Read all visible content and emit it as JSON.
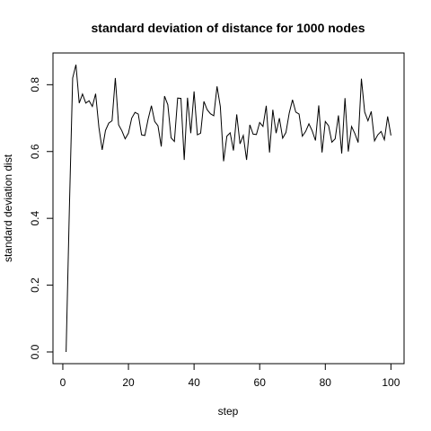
{
  "chart_data": {
    "type": "line",
    "title": "standard deviation of distance for 1000 nodes",
    "xlabel": "step",
    "ylabel": "standard deviation dist",
    "xlim": [
      -3,
      104
    ],
    "ylim": [
      -0.035,
      0.895
    ],
    "x_ticks": [
      0,
      20,
      40,
      60,
      80,
      100
    ],
    "y_ticks": [
      0.0,
      0.2,
      0.4,
      0.6,
      0.8
    ],
    "grid": false,
    "legend": "none",
    "x": [
      1,
      2,
      3,
      4,
      5,
      6,
      7,
      8,
      9,
      10,
      11,
      12,
      13,
      14,
      15,
      16,
      17,
      18,
      19,
      20,
      21,
      22,
      23,
      24,
      25,
      26,
      27,
      28,
      29,
      30,
      31,
      32,
      33,
      34,
      35,
      36,
      37,
      38,
      39,
      40,
      41,
      42,
      43,
      44,
      45,
      46,
      47,
      48,
      49,
      50,
      51,
      52,
      53,
      54,
      55,
      56,
      57,
      58,
      59,
      60,
      61,
      62,
      63,
      64,
      65,
      66,
      67,
      68,
      69,
      70,
      71,
      72,
      73,
      74,
      75,
      76,
      77,
      78,
      79,
      80,
      81,
      82,
      83,
      84,
      85,
      86,
      87,
      88,
      89,
      90,
      91,
      92,
      93,
      94,
      95,
      96,
      97,
      98,
      99,
      100
    ],
    "values": [
      0.0,
      0.43,
      0.82,
      0.86,
      0.745,
      0.772,
      0.745,
      0.752,
      0.735,
      0.773,
      0.672,
      0.605,
      0.663,
      0.685,
      0.692,
      0.82,
      0.68,
      0.662,
      0.638,
      0.655,
      0.7,
      0.717,
      0.712,
      0.65,
      0.648,
      0.697,
      0.737,
      0.69,
      0.677,
      0.615,
      0.766,
      0.74,
      0.641,
      0.63,
      0.76,
      0.759,
      0.575,
      0.761,
      0.655,
      0.78,
      0.65,
      0.655,
      0.75,
      0.725,
      0.713,
      0.707,
      0.795,
      0.735,
      0.571,
      0.646,
      0.656,
      0.603,
      0.711,
      0.623,
      0.648,
      0.575,
      0.68,
      0.652,
      0.651,
      0.687,
      0.675,
      0.737,
      0.597,
      0.725,
      0.655,
      0.7,
      0.64,
      0.657,
      0.715,
      0.755,
      0.718,
      0.712,
      0.646,
      0.66,
      0.683,
      0.662,
      0.633,
      0.738,
      0.597,
      0.69,
      0.677,
      0.628,
      0.638,
      0.708,
      0.594,
      0.76,
      0.6,
      0.675,
      0.654,
      0.627,
      0.818,
      0.718,
      0.692,
      0.72,
      0.632,
      0.65,
      0.66,
      0.635,
      0.705,
      0.648
    ]
  }
}
